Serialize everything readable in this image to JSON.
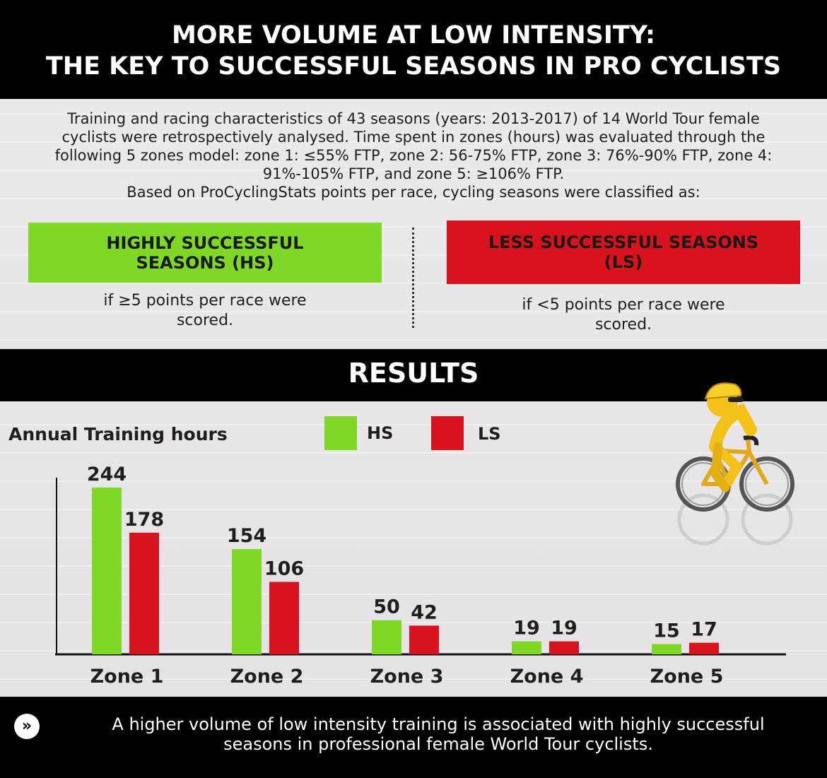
{
  "title": {
    "line1": "MORE VOLUME AT LOW INTENSITY:",
    "line2": "THE KEY TO SUCCESSFUL SEASONS IN PRO CYCLISTS"
  },
  "intro": {
    "line1": "Training and racing characteristics of 43 seasons (years: 2013-2017) of 14 World Tour female",
    "line2": "cyclists were retrospectively analysed. Time spent in zones (hours) was evaluated through the",
    "line3": "following 5 zones model: zone 1: ≤55% FTP, zone 2: 56-75% FTP, zone 3: 76%-90% FTP, zone 4:",
    "line4": "91%-105% FTP, and zone 5: ≥106% FTP.",
    "line5": "Based on ProCyclingStats points per race, cycling seasons were classified as:"
  },
  "classes": {
    "hs": {
      "label_line1": "HIGHLY SUCCESSFUL",
      "label_line2": "SEASONS (HS)",
      "cond_line1": "if ≥5 points per race were",
      "cond_line2": "scored.",
      "color": "#7fd726"
    },
    "ls": {
      "label_line1": "LESS SUCCESSFUL SEASONS",
      "label_line2": "(LS)",
      "cond_line1": "if <5 points per race were",
      "cond_line2": "scored.",
      "color": "#d8131e"
    }
  },
  "results_title": "RESULTS",
  "chart_data": {
    "type": "bar",
    "categories": [
      "Zone 1",
      "Zone 2",
      "Zone 3",
      "Zone 4",
      "Zone 5"
    ],
    "series": [
      {
        "name": "HS",
        "values": [
          244,
          154,
          50,
          19,
          15
        ],
        "color": "#7fd726"
      },
      {
        "name": "LS",
        "values": [
          178,
          106,
          42,
          19,
          17
        ],
        "color": "#d8131e"
      }
    ],
    "title": "",
    "xlabel": "",
    "ylabel": "Annual Training hours",
    "ylim": [
      0,
      260
    ],
    "grid": false,
    "legend": "top"
  },
  "footer": {
    "icon": "double-chevron-right-icon",
    "line1": "A higher volume of low intensity training is associated with highly successful",
    "line2": "seasons in professional female World Tour cyclists."
  },
  "illustration": {
    "icon": "cyclist-icon"
  }
}
